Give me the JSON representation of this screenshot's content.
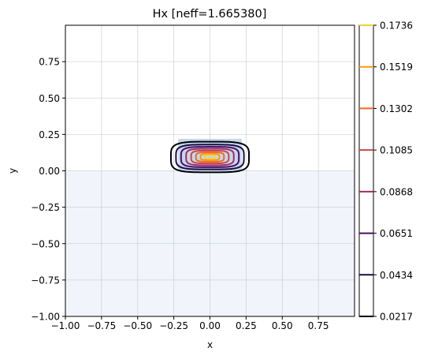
{
  "chart_data": {
    "type": "contour",
    "title": "Hx [neff=1.665380]",
    "xlabel": "x",
    "ylabel": "y",
    "xlim": [
      -1.0,
      1.0
    ],
    "ylim": [
      -1.0,
      1.0
    ],
    "xticks": [
      "−1.00",
      "−0.75",
      "−0.50",
      "−0.25",
      "0.00",
      "0.25",
      "0.50",
      "0.75"
    ],
    "yticks": [
      "−1.00",
      "−0.75",
      "−0.50",
      "−0.25",
      "0.00",
      "0.25",
      "0.50",
      "0.75"
    ],
    "grid": true,
    "regions": [
      {
        "name": "substrate",
        "x": [
          -1.0,
          1.0
        ],
        "y": [
          -1.0,
          0.0
        ],
        "color": "#f1f5fb"
      },
      {
        "name": "core",
        "x": [
          -0.22,
          0.22
        ],
        "y": [
          0.0,
          0.22
        ],
        "color": "#c5d8ec"
      }
    ],
    "field_center": [
      0.0,
      0.095
    ],
    "contour_levels": [
      0.0217,
      0.0434,
      0.0651,
      0.0868,
      0.1085,
      0.1302,
      0.1519,
      0.1736
    ],
    "level_colors": [
      "#000004",
      "#1b0c42",
      "#4b0c6b",
      "#a52c60",
      "#cf4446",
      "#ed6925",
      "#fb9a06",
      "#f7d03c"
    ],
    "contour_extents": [
      {
        "level": 0.0217,
        "half_width": 0.27,
        "half_height": 0.105
      },
      {
        "level": 0.0434,
        "half_width": 0.235,
        "half_height": 0.085
      },
      {
        "level": 0.0651,
        "half_width": 0.2,
        "half_height": 0.07
      },
      {
        "level": 0.0868,
        "half_width": 0.165,
        "half_height": 0.057
      },
      {
        "level": 0.1085,
        "half_width": 0.13,
        "half_height": 0.044
      },
      {
        "level": 0.1302,
        "half_width": 0.097,
        "half_height": 0.032
      },
      {
        "level": 0.1519,
        "half_width": 0.065,
        "half_height": 0.021
      },
      {
        "level": 0.1736,
        "half_width": 0.035,
        "half_height": 0.012
      }
    ],
    "colorbar": {
      "ticks": [
        "0.0217",
        "0.0434",
        "0.0651",
        "0.0868",
        "0.1085",
        "0.1302",
        "0.1519",
        "0.1736"
      ]
    }
  }
}
